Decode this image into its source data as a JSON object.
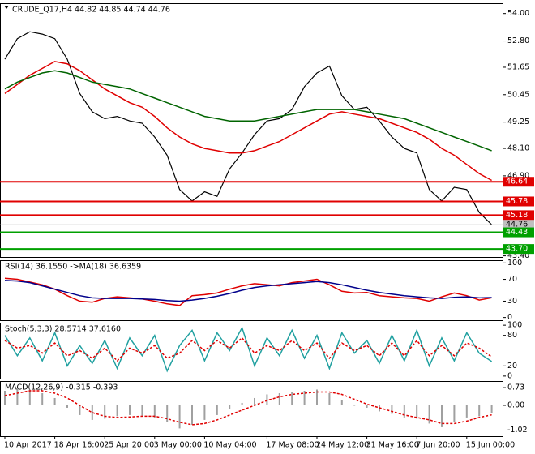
{
  "chart_data": [
    {
      "type": "line",
      "title": "CRUDE_Q17,H4  44.82 44.85 44.74 44.76",
      "categories": [
        "10 Apr 2017",
        null,
        null,
        null,
        "18 Apr 16:00",
        null,
        null,
        null,
        "25 Apr 20:00",
        null,
        null,
        null,
        "3 May 00:00",
        null,
        null,
        null,
        "10 May 04:00",
        null,
        null,
        null,
        null,
        "17 May 08:00",
        null,
        null,
        null,
        "24 May 12:00",
        null,
        null,
        null,
        "31 May 16:00",
        null,
        null,
        null,
        "7 Jun 20:00",
        null,
        null,
        null,
        "15 Jun 00:00",
        null,
        null
      ],
      "series": [
        {
          "color": "#000000",
          "values": [
            52.0,
            52.9,
            53.2,
            53.1,
            52.9,
            52.0,
            50.5,
            49.7,
            49.4,
            49.5,
            49.3,
            49.2,
            48.6,
            47.8,
            46.3,
            45.8,
            46.2,
            46.0,
            47.2,
            47.9,
            48.7,
            49.3,
            49.4,
            49.8,
            50.8,
            51.4,
            51.7,
            50.4,
            49.8,
            49.9,
            49.3,
            48.6,
            48.1,
            47.9,
            46.3,
            45.8,
            46.4,
            46.3,
            45.3,
            44.76
          ]
        },
        {
          "color": "#e00000",
          "values": [
            50.5,
            50.9,
            51.3,
            51.6,
            51.9,
            51.8,
            51.5,
            51.1,
            50.7,
            50.4,
            50.1,
            49.9,
            49.5,
            49.0,
            48.6,
            48.3,
            48.1,
            48.0,
            47.9,
            47.9,
            48.0,
            48.2,
            48.4,
            48.7,
            49.0,
            49.3,
            49.6,
            49.7,
            49.6,
            49.5,
            49.4,
            49.2,
            49.0,
            48.8,
            48.5,
            48.1,
            47.8,
            47.4,
            47.0,
            46.7
          ]
        },
        {
          "color": "#006400",
          "values": [
            50.7,
            51.0,
            51.2,
            51.4,
            51.5,
            51.4,
            51.2,
            51.0,
            50.9,
            50.8,
            50.7,
            50.5,
            50.3,
            50.1,
            49.9,
            49.7,
            49.5,
            49.4,
            49.3,
            49.3,
            49.3,
            49.4,
            49.5,
            49.6,
            49.7,
            49.8,
            49.8,
            49.8,
            49.8,
            49.7,
            49.6,
            49.5,
            49.4,
            49.2,
            49.0,
            48.8,
            48.6,
            48.4,
            48.2,
            48.0
          ]
        }
      ],
      "levels": [
        {
          "value": 46.64,
          "color": "#e00000"
        },
        {
          "value": 45.78,
          "color": "#e00000"
        },
        {
          "value": 45.18,
          "color": "#e00000"
        },
        {
          "value": 44.76,
          "color": "#c0c0c0"
        },
        {
          "value": 44.43,
          "color": "#00a000"
        },
        {
          "value": 43.7,
          "label": "43.70",
          "color": "#00a000"
        }
      ],
      "ylim": [
        43.35,
        54.45
      ],
      "yticks": [
        {
          "value": 54,
          "label": "54.00"
        },
        {
          "value": 52.8,
          "label": "52.80"
        },
        51.65,
        50.45,
        49.25,
        {
          "value": 48.1,
          "label": "48.10"
        },
        {
          "value": 46.9,
          "label": "46.90"
        },
        {
          "value": 43.4,
          "label": "43.40"
        }
      ]
    },
    {
      "type": "line",
      "title": "RSI(14) 36.1550 ->MA(18) 36.6359",
      "series": [
        {
          "color": "#e00000",
          "values": [
            72,
            70,
            65,
            60,
            52,
            40,
            30,
            28,
            35,
            38,
            36,
            34,
            30,
            25,
            22,
            40,
            42,
            45,
            52,
            58,
            62,
            60,
            58,
            64,
            67,
            70,
            60,
            48,
            45,
            46,
            40,
            38,
            36,
            35,
            30,
            38,
            45,
            40,
            32,
            36.155
          ]
        },
        {
          "color": "#00008b",
          "values": [
            68,
            67,
            64,
            58,
            52,
            46,
            40,
            36,
            35,
            35,
            35,
            34,
            33,
            31,
            30,
            32,
            35,
            39,
            44,
            50,
            55,
            58,
            60,
            62,
            64,
            66,
            64,
            60,
            55,
            50,
            46,
            43,
            40,
            38,
            36,
            35,
            37,
            38,
            36,
            36.6359
          ]
        }
      ],
      "ylim": [
        -5,
        105
      ],
      "yticks": [
        100,
        70,
        30,
        0
      ]
    },
    {
      "type": "line",
      "title": "Stoch(5,3,3) 28.5714 37.6160",
      "series": [
        {
          "color": "#20a0a0",
          "values": [
            80,
            40,
            75,
            30,
            85,
            20,
            60,
            25,
            70,
            15,
            75,
            40,
            80,
            10,
            60,
            90,
            30,
            85,
            50,
            95,
            20,
            75,
            40,
            90,
            35,
            80,
            15,
            85,
            45,
            70,
            25,
            80,
            30,
            90,
            20,
            75,
            30,
            85,
            45,
            28.5714
          ]
        },
        {
          "color": "#e00000",
          "dash": true,
          "values": [
            70,
            55,
            60,
            45,
            65,
            40,
            50,
            35,
            55,
            30,
            55,
            45,
            60,
            35,
            45,
            70,
            50,
            70,
            55,
            75,
            45,
            60,
            50,
            70,
            50,
            65,
            35,
            65,
            50,
            60,
            40,
            65,
            40,
            70,
            40,
            60,
            40,
            65,
            55,
            37.616
          ]
        }
      ],
      "ylim": [
        -5,
        105
      ],
      "yticks": [
        100,
        80,
        20,
        0
      ]
    },
    {
      "type": "bar",
      "title": "MACD(12,26,9) -0.315 -0.393",
      "series": [
        {
          "color": "#a0a0a0",
          "style": "bar",
          "values": [
            0.6,
            0.7,
            0.65,
            0.5,
            0.3,
            -0.1,
            -0.4,
            -0.6,
            -0.55,
            -0.45,
            -0.4,
            -0.42,
            -0.5,
            -0.7,
            -0.95,
            -0.8,
            -0.6,
            -0.4,
            -0.15,
            0.1,
            0.3,
            0.45,
            0.5,
            0.55,
            0.6,
            0.65,
            0.5,
            0.2,
            0.0,
            -0.1,
            -0.25,
            -0.35,
            -0.5,
            -0.55,
            -0.75,
            -0.9,
            -0.7,
            -0.5,
            -0.45,
            -0.315
          ]
        },
        {
          "color": "#e00000",
          "style": "line",
          "dash": true,
          "values": [
            0.4,
            0.5,
            0.6,
            0.6,
            0.5,
            0.3,
            0.0,
            -0.3,
            -0.45,
            -0.5,
            -0.48,
            -0.45,
            -0.45,
            -0.55,
            -0.7,
            -0.8,
            -0.75,
            -0.6,
            -0.4,
            -0.2,
            0.0,
            0.2,
            0.35,
            0.45,
            0.5,
            0.55,
            0.55,
            0.45,
            0.25,
            0.05,
            -0.1,
            -0.25,
            -0.4,
            -0.5,
            -0.6,
            -0.75,
            -0.75,
            -0.65,
            -0.5,
            -0.393
          ]
        }
      ],
      "ylim": [
        -1.27,
        1.0
      ],
      "yticks": [
        0.73,
        {
          "value": 0,
          "label": "0.00"
        },
        -1.02
      ]
    }
  ]
}
